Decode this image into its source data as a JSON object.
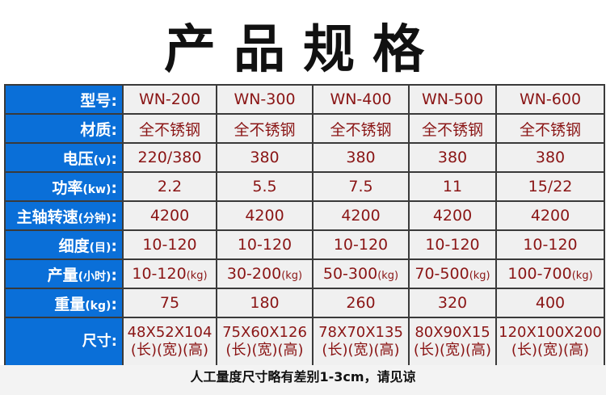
{
  "title": "产品规格",
  "rows": [
    {
      "label": "型号",
      "unit": "",
      "values": [
        "WN-200",
        "WN-300",
        "WN-400",
        "WN-500",
        "WN-600"
      ]
    },
    {
      "label": "材质",
      "unit": "",
      "values": [
        "全不锈钢",
        "全不锈钢",
        "全不锈钢",
        "全不锈钢",
        "全不锈钢"
      ]
    },
    {
      "label": "电压",
      "unit": "(v)",
      "values": [
        "220/380",
        "380",
        "380",
        "380",
        "380"
      ]
    },
    {
      "label": "功率",
      "unit": "(kw)",
      "values": [
        "2.2",
        "5.5",
        "7.5",
        "11",
        "15/22"
      ]
    },
    {
      "label": "主轴转速",
      "unit": "(分钟)",
      "values": [
        "4200",
        "4200",
        "4200",
        "4200",
        "4200"
      ]
    },
    {
      "label": "细度",
      "unit": "(目)",
      "values": [
        "10-120",
        "10-120",
        "10-120",
        "10-120",
        "10-120"
      ]
    },
    {
      "label": "产量",
      "unit": "(小时)",
      "values": [
        "10-120",
        "30-200",
        "50-300",
        "70-500",
        "100-700"
      ],
      "value_unit": "(kg)"
    },
    {
      "label": "重量",
      "unit": "(kg)",
      "values": [
        "75",
        "180",
        "260",
        "320",
        "400"
      ]
    },
    {
      "label": "尺寸",
      "unit": "",
      "values": [
        "48X52X104",
        "75X60X126",
        "78X70X135",
        "80X90X15",
        "120X100X200"
      ],
      "sub": "(长)(宽)(高)"
    }
  ],
  "colon": ":",
  "footer": "人工量度尺寸略有差别1-3cm，请见谅",
  "colors": {
    "label_bg": "#0a6fd8",
    "value_text": "#8a1515",
    "cell_bg": "#f0f0f0"
  }
}
